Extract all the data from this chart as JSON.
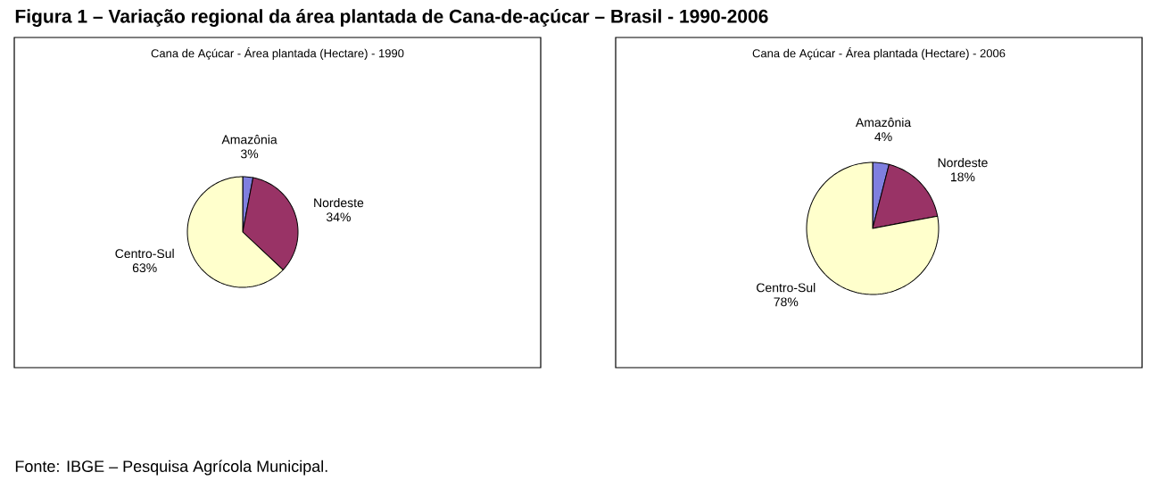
{
  "chart_data": [
    {
      "type": "pie",
      "title": "Cana de Açúcar - Área plantada (Hectare) - 1990",
      "categories": [
        "Amazônia",
        "Nordeste",
        "Centro-Sul"
      ],
      "values": [
        3,
        34,
        63
      ],
      "value_labels": [
        "3%",
        "34%",
        "63%"
      ],
      "colors": [
        "#7f7fdf",
        "#993366",
        "#ffffcc"
      ],
      "annotations": [
        "Figura 1 – Variação regional da área plantada de Cana-de-açúcar – Brasil - 1990-2006"
      ]
    },
    {
      "type": "pie",
      "title": "Cana de Açúcar - Área plantada (Hectare) - 2006",
      "categories": [
        "Amazônia",
        "Nordeste",
        "Centro-Sul"
      ],
      "values": [
        4,
        18,
        78
      ],
      "value_labels": [
        "4%",
        "18%",
        "78%"
      ],
      "colors": [
        "#7f7fdf",
        "#993366",
        "#ffffcc"
      ],
      "annotations": [
        "Fonte: IBGE – Pesquisa Agrícola Municipal."
      ]
    }
  ]
}
